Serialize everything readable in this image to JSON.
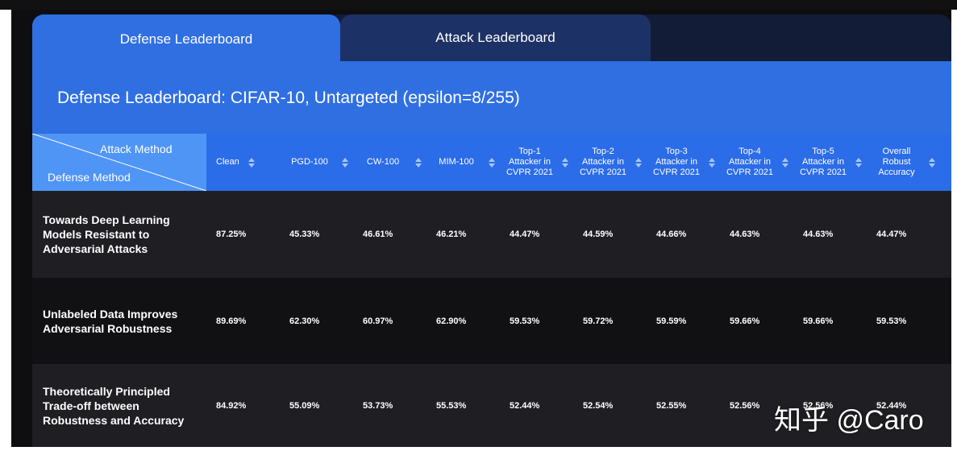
{
  "tabs": [
    "Defense Leaderboard",
    "Attack Leaderboard"
  ],
  "title": "Defense Leaderboard: CIFAR-10, Untargeted (epsilon=8/255)",
  "table": {
    "corner": {
      "top": "Attack Method",
      "bottom": "Defense Method"
    },
    "columns": [
      "Clean",
      "PGD-100",
      "CW-100",
      "MIM-100",
      "Top-1 Attacker in CVPR 2021",
      "Top-2 Attacker in CVPR 2021",
      "Top-3 Attacker in CVPR 2021",
      "Top-4 Attacker in CVPR 2021",
      "Top-5 Attacker in CVPR 2021",
      "Overall Robust Accuracy"
    ],
    "rows": [
      {
        "defense": "Towards Deep Learning Models Resistant to Adversarial Attacks",
        "values": [
          "87.25%",
          "45.33%",
          "46.61%",
          "46.21%",
          "44.47%",
          "44.59%",
          "44.66%",
          "44.63%",
          "44.63%",
          "44.47%"
        ]
      },
      {
        "defense": "Unlabeled Data Improves Adversarial Robustness",
        "values": [
          "89.69%",
          "62.30%",
          "60.97%",
          "62.90%",
          "59.53%",
          "59.72%",
          "59.59%",
          "59.66%",
          "59.66%",
          "59.53%"
        ]
      },
      {
        "defense": "Theoretically Principled Trade-off between Robustness and Accuracy",
        "values": [
          "84.92%",
          "55.09%",
          "53.73%",
          "55.53%",
          "52.44%",
          "52.54%",
          "52.55%",
          "52.56%",
          "52.56%",
          "52.44%"
        ]
      }
    ]
  },
  "watermark": "知乎 @Caro"
}
